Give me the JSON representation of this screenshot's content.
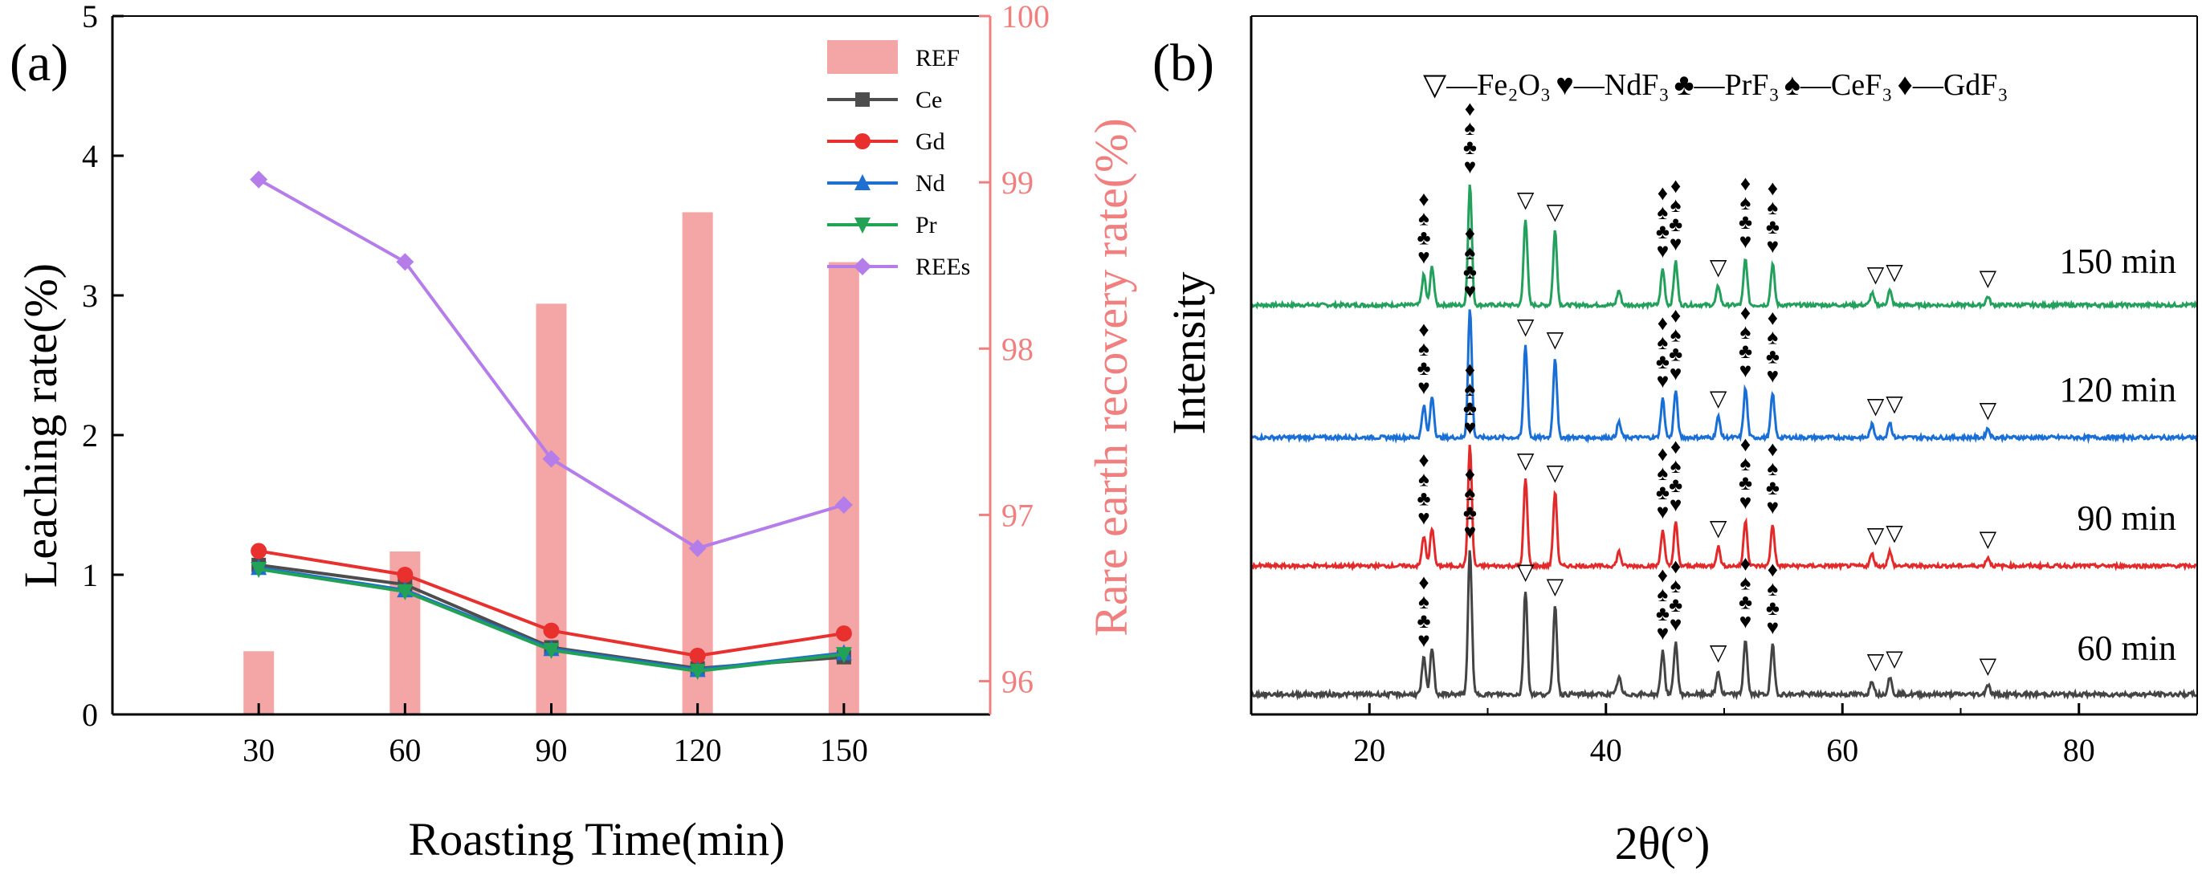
{
  "chart_data": [
    {
      "panel_label": "(a)",
      "type": "bar+line",
      "xlabel": "Roasting Time(min)",
      "ylabel_left": "Leaching rate(%)",
      "ylabel_right": "Rare earth recovery rate(%)",
      "categories": [
        "30",
        "60",
        "90",
        "120",
        "150"
      ],
      "x_values": [
        30,
        60,
        90,
        120,
        150
      ],
      "xlim": [
        0,
        180
      ],
      "ylim_left": [
        0,
        5
      ],
      "ylim_right": [
        95.8,
        100
      ],
      "yticks_left": [
        "0",
        "1",
        "2",
        "3",
        "4",
        "5"
      ],
      "yticks_right": [
        "96",
        "97",
        "98",
        "99",
        "100"
      ],
      "bar_series": {
        "name": "REF",
        "axis": "right",
        "color": "#f4a5a5",
        "values": [
          96.18,
          96.78,
          98.27,
          98.82,
          98.52
        ]
      },
      "line_series": [
        {
          "name": "Ce",
          "color": "#4d4d4d",
          "marker": "square",
          "values": [
            1.07,
            0.93,
            0.48,
            0.33,
            0.41
          ]
        },
        {
          "name": "Gd",
          "color": "#e8302e",
          "marker": "circle",
          "values": [
            1.17,
            1.0,
            0.6,
            0.42,
            0.58
          ]
        },
        {
          "name": "Nd",
          "color": "#1f6fd1",
          "marker": "triangle-up",
          "values": [
            1.05,
            0.89,
            0.47,
            0.32,
            0.44
          ]
        },
        {
          "name": "Pr",
          "color": "#22a255",
          "marker": "triangle-down",
          "values": [
            1.04,
            0.88,
            0.46,
            0.31,
            0.43
          ]
        },
        {
          "name": "REEs",
          "color": "#b57de9",
          "marker": "diamond",
          "values": [
            3.83,
            3.24,
            1.83,
            1.19,
            1.5
          ]
        }
      ],
      "legend_position": "top-right"
    },
    {
      "panel_label": "(b)",
      "type": "line",
      "xlabel": "2θ(°)",
      "ylabel": "Intensity",
      "xlim": [
        10,
        90
      ],
      "xticks": [
        "20",
        "40",
        "60",
        "80"
      ],
      "xtick_values": [
        20,
        40,
        60,
        80
      ],
      "phase_legend": {
        "fe2o3": "▽",
        "ndf3": "♥",
        "prf3": "♣",
        "cef3": "♠",
        "gdf3": "♦",
        "dash": "—",
        "fe2o3_label": "Fe₂O₃",
        "ndf3_label": "NdF₃",
        "prf3_label": "PrF₃",
        "cef3_label": "CeF₃",
        "gdf3_label": "GdF₃"
      },
      "series": [
        {
          "name": "150 min",
          "color": "#23a15c",
          "baseline": 0.0
        },
        {
          "name": "120 min",
          "color": "#1a6fd6",
          "baseline": 0.0
        },
        {
          "name": "90 min",
          "color": "#e32a2a",
          "baseline": 0.0
        },
        {
          "name": "60 min",
          "color": "#444444",
          "baseline": 0.0
        }
      ],
      "peaks": [
        {
          "two_theta": 24.6,
          "rel_height": 0.25,
          "phase": "REF"
        },
        {
          "two_theta": 25.3,
          "rel_height": 0.32,
          "phase": "REF"
        },
        {
          "two_theta": 28.5,
          "rel_height": 1.0,
          "phase": "REF"
        },
        {
          "two_theta": 33.2,
          "rel_height": 0.72,
          "phase": "Fe2O3"
        },
        {
          "two_theta": 35.7,
          "rel_height": 0.62,
          "phase": "Fe2O3"
        },
        {
          "two_theta": 41.1,
          "rel_height": 0.12,
          "phase": "other"
        },
        {
          "two_theta": 44.8,
          "rel_height": 0.3,
          "phase": "REF"
        },
        {
          "two_theta": 45.9,
          "rel_height": 0.36,
          "phase": "REF"
        },
        {
          "two_theta": 49.5,
          "rel_height": 0.16,
          "phase": "Fe2O3"
        },
        {
          "two_theta": 51.8,
          "rel_height": 0.38,
          "phase": "REF"
        },
        {
          "two_theta": 54.1,
          "rel_height": 0.34,
          "phase": "REF"
        },
        {
          "two_theta": 62.5,
          "rel_height": 0.1,
          "phase": "Fe2O3"
        },
        {
          "two_theta": 64.0,
          "rel_height": 0.12,
          "phase": "Fe2O3"
        },
        {
          "two_theta": 72.3,
          "rel_height": 0.07,
          "phase": "Fe2O3"
        }
      ],
      "peak_annotations": [
        {
          "two_theta": 24.6,
          "symbols": [
            "♦",
            "♠",
            "♣",
            "♥"
          ]
        },
        {
          "two_theta": 28.5,
          "symbols": [
            "♦",
            "♠",
            "♣",
            "♥"
          ]
        },
        {
          "two_theta": 33.2,
          "symbols": [
            "▽"
          ]
        },
        {
          "two_theta": 35.7,
          "symbols": [
            "▽"
          ]
        },
        {
          "two_theta": 44.8,
          "symbols": [
            "♦",
            "♠",
            "♣",
            "♥"
          ]
        },
        {
          "two_theta": 45.9,
          "symbols": [
            "♦",
            "♠",
            "♣",
            "♥"
          ]
        },
        {
          "two_theta": 49.5,
          "symbols": [
            "▽"
          ]
        },
        {
          "two_theta": 51.8,
          "symbols": [
            "♦",
            "♠",
            "♣",
            "♥"
          ]
        },
        {
          "two_theta": 54.1,
          "symbols": [
            "♦",
            "♠",
            "♣",
            "♥"
          ]
        },
        {
          "two_theta": 62.8,
          "symbols": [
            "▽"
          ]
        },
        {
          "two_theta": 64.4,
          "symbols": [
            "▽"
          ]
        },
        {
          "two_theta": 72.3,
          "symbols": [
            "▽"
          ]
        }
      ]
    }
  ]
}
